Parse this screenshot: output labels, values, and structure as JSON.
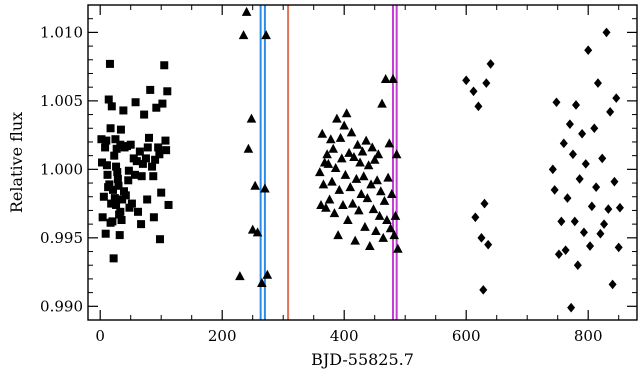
{
  "chart_data": {
    "type": "scatter",
    "title": "",
    "xlabel": "BJD-55825.7",
    "ylabel": "Relative flux",
    "xlim": [
      -20,
      880
    ],
    "ylim": [
      0.989,
      1.012
    ],
    "xticks": [
      0,
      200,
      400,
      600,
      800
    ],
    "xtick_labels": [
      "0",
      "200",
      "400",
      "600",
      "800"
    ],
    "yticks": [
      0.99,
      0.995,
      1.0,
      1.005,
      1.01
    ],
    "ytick_labels": [
      "0.990",
      "0.995",
      "1.000",
      "1.005",
      "1.010"
    ],
    "grid": false,
    "legend": "none",
    "vertical_lines": [
      {
        "x": 263,
        "color": "#2a8ae6"
      },
      {
        "x": 270,
        "color": "#2a8ae6"
      },
      {
        "x": 308,
        "color": "#e0735a"
      },
      {
        "x": 480,
        "color": "#c43bd6"
      },
      {
        "x": 486,
        "color": "#c43bd6"
      }
    ],
    "series": [
      {
        "marker": "square",
        "color": "#000000",
        "x": [
          2,
          4,
          6,
          8,
          9,
          10,
          11,
          12,
          14,
          15,
          16,
          17,
          18,
          19,
          20,
          21,
          22,
          23,
          24,
          25,
          26,
          27,
          28,
          29,
          30,
          31,
          32,
          33,
          34,
          35,
          36,
          38,
          40,
          42,
          44,
          46,
          48,
          50,
          52,
          55,
          58,
          60,
          62,
          65,
          68,
          70,
          72,
          75,
          78,
          80,
          82,
          85,
          88,
          90,
          92,
          95,
          98,
          100,
          102,
          105,
          108,
          110,
          112,
          3,
          13,
          17,
          26,
          33,
          39,
          47,
          57,
          67,
          77,
          87,
          97,
          107
        ],
        "y": [
          1.0022,
          0.9965,
          0.998,
          1.0016,
          0.9953,
          1.0021,
          1.0003,
          0.9996,
          1.0051,
          0.9989,
          1.0077,
          1.003,
          0.9975,
          1.0046,
          0.9962,
          0.9985,
          0.9935,
          1.001,
          0.9979,
          1.0022,
          0.9974,
          1.0015,
          0.9998,
          0.9993,
          0.9988,
          0.9967,
          0.9952,
          1.0018,
          1.0029,
          0.9963,
          0.9978,
          1.0043,
          1.0016,
          0.9981,
          1.0017,
          0.9992,
          0.9972,
          1.0018,
          0.9975,
          1.0008,
          1.0049,
          1.0006,
          0.9969,
          1.0013,
          0.9995,
          1.0004,
          1.004,
          1.0008,
          1.0016,
          1.0023,
          1.0058,
          1.0002,
          0.9965,
          1.0007,
          1.0045,
          1.0016,
          0.9949,
          0.9983,
          1.0048,
          1.0076,
          1.0014,
          1.0057,
          0.9974,
          1.0005,
          0.9987,
          0.9961,
          1.0002,
          0.9969,
          0.9984,
          0.9999,
          0.9996,
          0.996,
          0.9978,
          0.9995,
          1.0011,
          1.0021
        ]
      },
      {
        "marker": "triangle",
        "color": "#000000",
        "x": [
          229,
          235,
          240,
          243,
          248,
          250,
          254,
          258,
          265,
          270,
          272,
          274,
          360,
          362,
          364,
          366,
          368,
          370,
          372,
          374,
          376,
          378,
          380,
          382,
          384,
          386,
          388,
          390,
          392,
          394,
          396,
          398,
          400,
          402,
          404,
          406,
          408,
          410,
          412,
          414,
          416,
          418,
          420,
          422,
          424,
          426,
          428,
          430,
          432,
          434,
          436,
          438,
          440,
          442,
          444,
          446,
          448,
          450,
          452,
          454,
          456,
          458,
          460,
          462,
          464,
          466,
          468,
          470,
          472,
          474,
          476,
          478,
          480,
          482,
          484,
          486,
          488
        ],
        "y": [
          0.9922,
          1.0098,
          1.0115,
          1.0015,
          1.0037,
          0.9956,
          0.9988,
          0.9954,
          0.9917,
          0.9986,
          1.0098,
          0.9923,
          0.9998,
          0.9974,
          1.0026,
          0.9989,
          1.0005,
          0.9972,
          1.0011,
          1.0004,
          0.9978,
          1.0022,
          0.9991,
          1.0015,
          0.9968,
          1.0001,
          1.0037,
          0.9952,
          0.9985,
          1.0023,
          1.0008,
          0.9974,
          1.0032,
          0.9996,
          1.0041,
          0.9963,
          1.0012,
          0.9987,
          1.0027,
          0.9975,
          1.0009,
          0.9948,
          0.9993,
          1.0018,
          0.997,
          1.0005,
          0.9982,
          1.0013,
          0.9995,
          0.9958,
          1.0021,
          0.9979,
          1.0003,
          0.9944,
          0.9989,
          1.0016,
          0.9971,
          1.0007,
          0.9955,
          0.9992,
          1.0011,
          0.9966,
          0.9984,
          1.0048,
          0.995,
          0.9977,
          1.0066,
          0.9963,
          0.9994,
          1.0019,
          0.9957,
          0.9982,
          1.0066,
          0.9952,
          0.9966,
          1.0011,
          0.9942
        ]
      },
      {
        "marker": "diamond",
        "color": "#000000",
        "x": [
          600,
          612,
          615,
          620,
          625,
          628,
          630,
          633,
          636,
          640,
          742,
          745,
          748,
          752,
          756,
          760,
          763,
          766,
          770,
          772,
          775,
          778,
          780,
          783,
          786,
          790,
          793,
          796,
          800,
          803,
          806,
          810,
          813,
          816,
          820,
          823,
          826,
          830,
          833,
          836,
          840,
          843,
          846,
          850,
          852
        ],
        "y": [
          1.0065,
          1.0057,
          0.9965,
          1.0046,
          0.995,
          0.9912,
          0.9975,
          1.0063,
          0.9945,
          1.0077,
          1.0,
          0.9985,
          1.0049,
          0.9938,
          0.9962,
          1.0019,
          0.9941,
          0.9979,
          1.0033,
          0.9899,
          1.0011,
          0.9962,
          1.0047,
          0.993,
          0.9993,
          1.0026,
          0.9954,
          1.0004,
          1.0087,
          0.9944,
          0.9973,
          1.003,
          0.9987,
          1.0063,
          0.9953,
          1.0008,
          0.996,
          1.01,
          0.9971,
          1.0042,
          0.9916,
          0.9991,
          1.0052,
          0.9943,
          0.9972
        ]
      }
    ]
  }
}
